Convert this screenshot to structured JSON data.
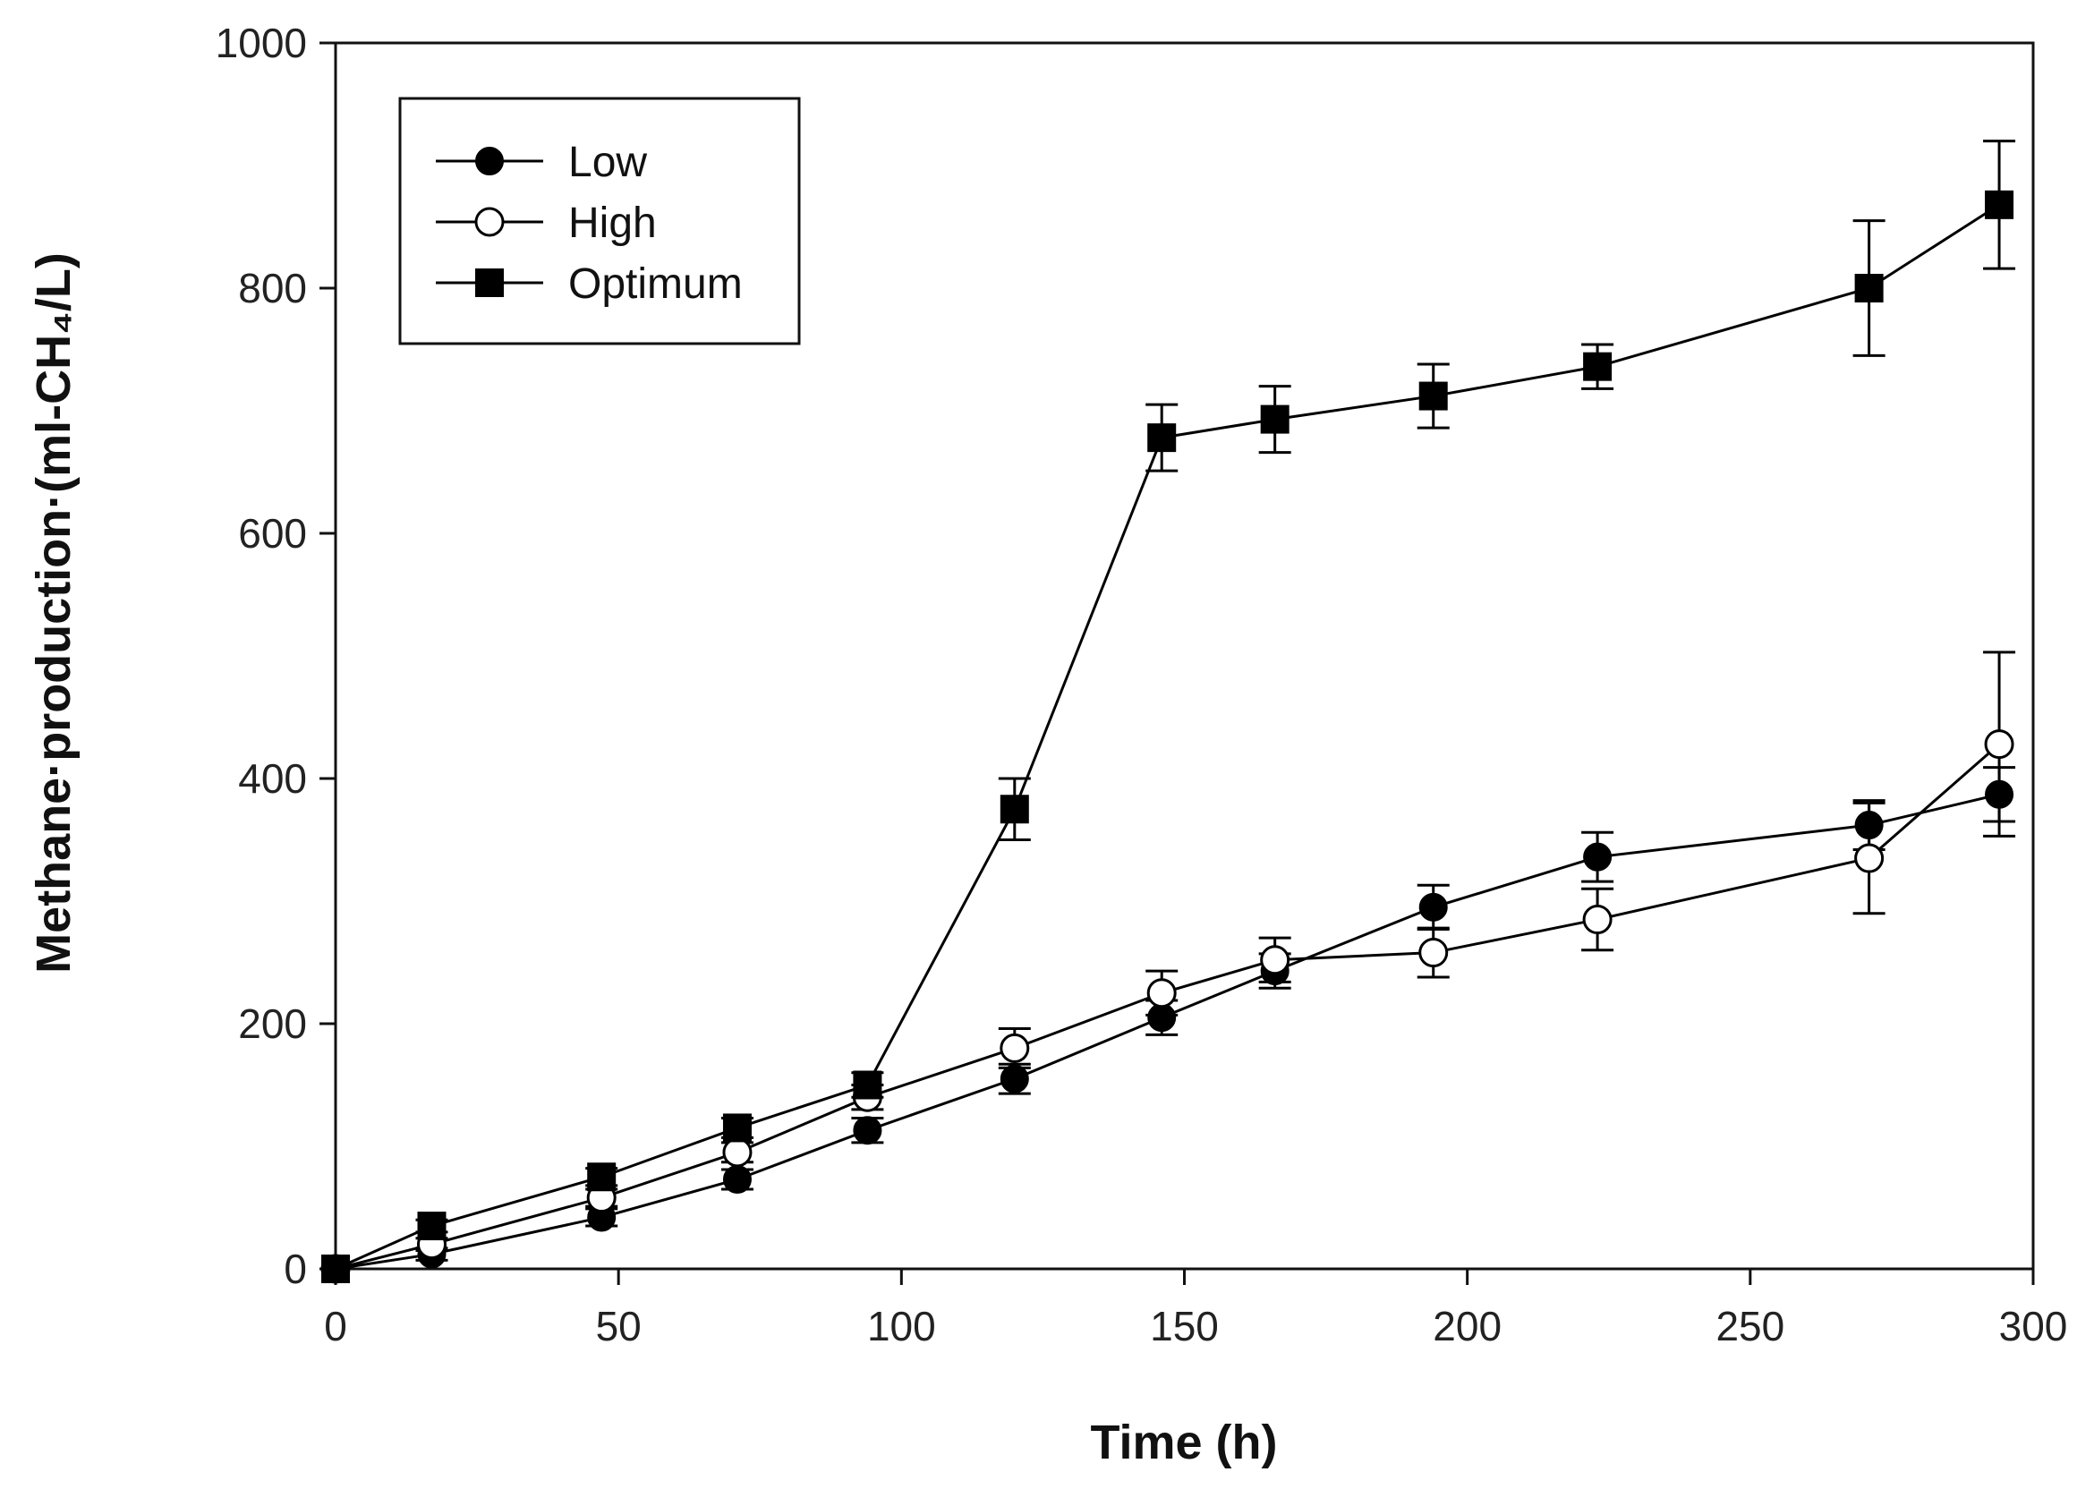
{
  "chart_data": {
    "type": "line",
    "xlabel": "Time (h)",
    "ylabel": "Methane·production·(ml-CH₄/L)",
    "xlim": [
      0,
      300
    ],
    "ylim": [
      0,
      1000
    ],
    "xticks": [
      0,
      50,
      100,
      150,
      200,
      250,
      300
    ],
    "yticks": [
      0,
      200,
      400,
      600,
      800,
      1000
    ],
    "grid": false,
    "legend_position": "top-left",
    "error_bars": true,
    "series": [
      {
        "name": "Low",
        "marker": "filled-circle",
        "color": "#000000",
        "x": [
          0,
          17,
          47,
          71,
          94,
          120,
          146,
          166,
          194,
          223,
          271,
          294
        ],
        "y": [
          0,
          12,
          42,
          73,
          113,
          155,
          205,
          243,
          295,
          336,
          362,
          387
        ],
        "err": [
          0,
          5,
          7,
          8,
          10,
          12,
          14,
          14,
          18,
          20,
          20,
          22
        ]
      },
      {
        "name": "High",
        "marker": "open-circle",
        "color": "#000000",
        "x": [
          0,
          17,
          47,
          71,
          94,
          120,
          146,
          166,
          194,
          223,
          271,
          294
        ],
        "y": [
          0,
          20,
          58,
          95,
          140,
          180,
          225,
          252,
          258,
          285,
          335,
          428
        ],
        "err": [
          0,
          5,
          7,
          8,
          10,
          16,
          18,
          18,
          20,
          25,
          45,
          75
        ]
      },
      {
        "name": "Optimum",
        "marker": "filled-square",
        "color": "#000000",
        "x": [
          0,
          17,
          47,
          71,
          94,
          120,
          146,
          166,
          194,
          223,
          271,
          294
        ],
        "y": [
          0,
          35,
          75,
          115,
          150,
          375,
          678,
          693,
          712,
          736,
          800,
          868
        ],
        "err": [
          0,
          5,
          7,
          8,
          10,
          25,
          27,
          27,
          26,
          18,
          55,
          52
        ]
      }
    ]
  }
}
